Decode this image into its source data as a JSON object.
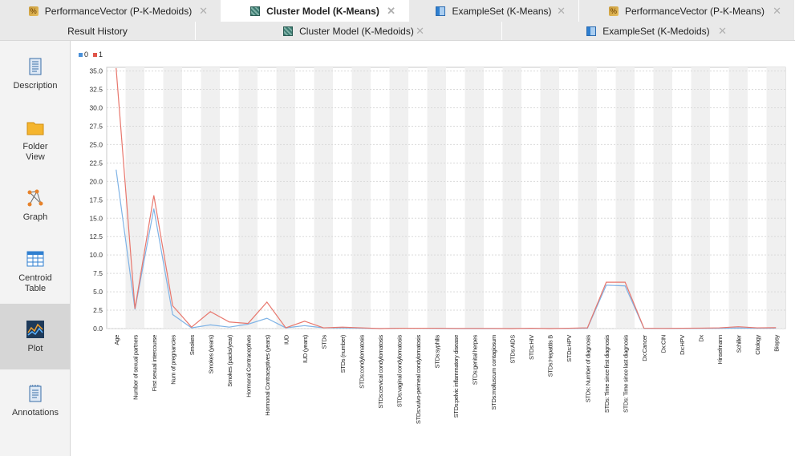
{
  "tabs_top": [
    {
      "label": "PerformanceVector (P-K-Medoids)",
      "icon": "performance-icon",
      "active": false
    },
    {
      "label": "Cluster Model (K-Means)",
      "icon": "cluster-icon",
      "active": true
    },
    {
      "label": "ExampleSet (K-Means)",
      "icon": "exampleset-icon",
      "active": false
    },
    {
      "label": "PerformanceVector (P-K-Means)",
      "icon": "performance-icon",
      "active": false
    }
  ],
  "tabs_second": [
    {
      "label": "Result History"
    },
    {
      "label": "Cluster Model (K-Medoids)",
      "icon": "cluster-icon"
    },
    {
      "label": "ExampleSet (K-Medoids)",
      "icon": "exampleset-icon"
    }
  ],
  "close_glyph": "✕",
  "sidebar": [
    {
      "label": "Description",
      "icon": "description-icon"
    },
    {
      "label": "Folder View",
      "icon": "folder-icon"
    },
    {
      "label": "Graph",
      "icon": "graph-icon"
    },
    {
      "label": "Centroid Table",
      "icon": "table-icon"
    },
    {
      "label": "Plot",
      "icon": "plot-icon",
      "active": true
    },
    {
      "label": "Annotations",
      "icon": "annotations-icon"
    }
  ],
  "chart_data": {
    "type": "line",
    "legend": [
      {
        "name": "0",
        "color": "#4a90d9"
      },
      {
        "name": "1",
        "color": "#e0554a"
      }
    ],
    "legend_placement": "top-left",
    "ylim": [
      0,
      35.5
    ],
    "yticks": [
      "0.0",
      "2.5",
      "5.0",
      "7.5",
      "10.0",
      "12.5",
      "15.0",
      "17.5",
      "20.0",
      "22.5",
      "25.0",
      "27.5",
      "30.0",
      "32.5",
      "35.0"
    ],
    "grid": true,
    "categories": [
      "Age",
      "Number of sexual partners",
      "First sexual intercourse",
      "Num of pregnancies",
      "Smokes",
      "Smokes (years)",
      "Smokes (packs/year)",
      "Hormonal Contraceptives",
      "Hormonal Contraceptives (years)",
      "IUD",
      "IUD (years)",
      "STDs",
      "STDs (number)",
      "STDs:condylomatosis",
      "STDs:cervical condylomatosis",
      "STDs:vaginal condylomatosis",
      "STDs:vulvo-perineal condylomatosis",
      "STDs:syphilis",
      "STDs:pelvic inflammatory disease",
      "STDs:genital herpes",
      "STDs:molluscum contagiosum",
      "STDs:AIDS",
      "STDs:HIV",
      "STDs:Hepatitis B",
      "STDs:HPV",
      "STDs: Number of diagnosis",
      "STDs: Time since first diagnosis",
      "STDs: Time since last diagnosis",
      "Dx:Cancer",
      "Dx:CIN",
      "Dx:HPV",
      "Dx",
      "Hinselmann",
      "Schiller",
      "Citology",
      "Biopsy"
    ],
    "series": [
      {
        "name": "0",
        "color": "#7fb3e6",
        "values": [
          21.6,
          2.6,
          16.3,
          1.9,
          0.1,
          0.5,
          0.2,
          0.6,
          1.4,
          0.1,
          0.4,
          0.1,
          0.1,
          0.05,
          0,
          0.05,
          0.05,
          0.02,
          0,
          0,
          0,
          0,
          0.02,
          0,
          0.02,
          0.05,
          5.9,
          5.8,
          0.02,
          0.01,
          0.02,
          0.03,
          0.04,
          0.08,
          0.05,
          0.06
        ]
      },
      {
        "name": "1",
        "color": "#e8776d",
        "values": [
          35.4,
          2.7,
          18.1,
          3.1,
          0.2,
          2.3,
          0.9,
          0.7,
          3.6,
          0.1,
          1.0,
          0.1,
          0.2,
          0.1,
          0,
          0.05,
          0.05,
          0.05,
          0.02,
          0.02,
          0.02,
          0,
          0.05,
          0,
          0.05,
          0.1,
          6.3,
          6.3,
          0.05,
          0.02,
          0.05,
          0.06,
          0.1,
          0.25,
          0.1,
          0.12
        ]
      }
    ]
  }
}
